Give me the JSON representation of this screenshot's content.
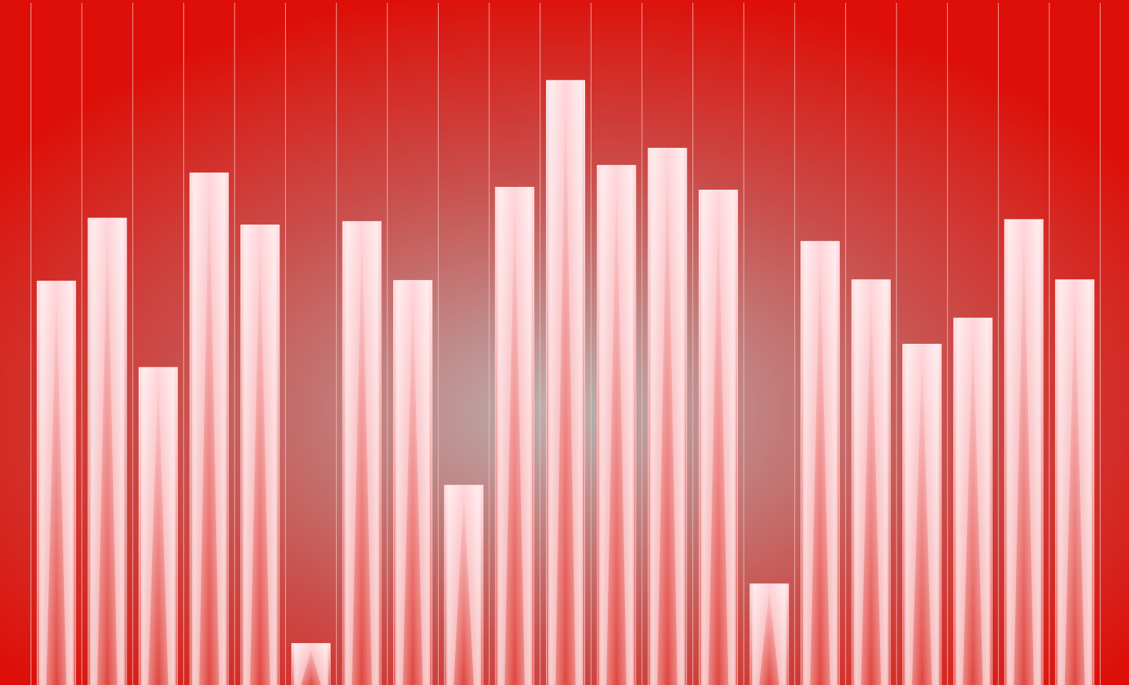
{
  "colors": {
    "background_edge": "#dd0f08",
    "background_center": "#b9b2b2",
    "bar_highlight": "#ffd6da",
    "bar_shadow": "#e0453f",
    "divider": "#f4c4c2"
  },
  "chart_data": {
    "type": "bar",
    "title": "",
    "xlabel": "",
    "ylabel": "",
    "ylim": [
      0,
      100
    ],
    "grid": false,
    "legend": "none",
    "vertical_dividers": true,
    "values": [
      59.0,
      68.2,
      46.4,
      74.8,
      67.2,
      6.1,
      67.7,
      59.1,
      29.2,
      72.7,
      88.3,
      75.9,
      78.4,
      72.3,
      14.8,
      64.8,
      59.2,
      49.8,
      53.6,
      68.0,
      59.2
    ]
  }
}
